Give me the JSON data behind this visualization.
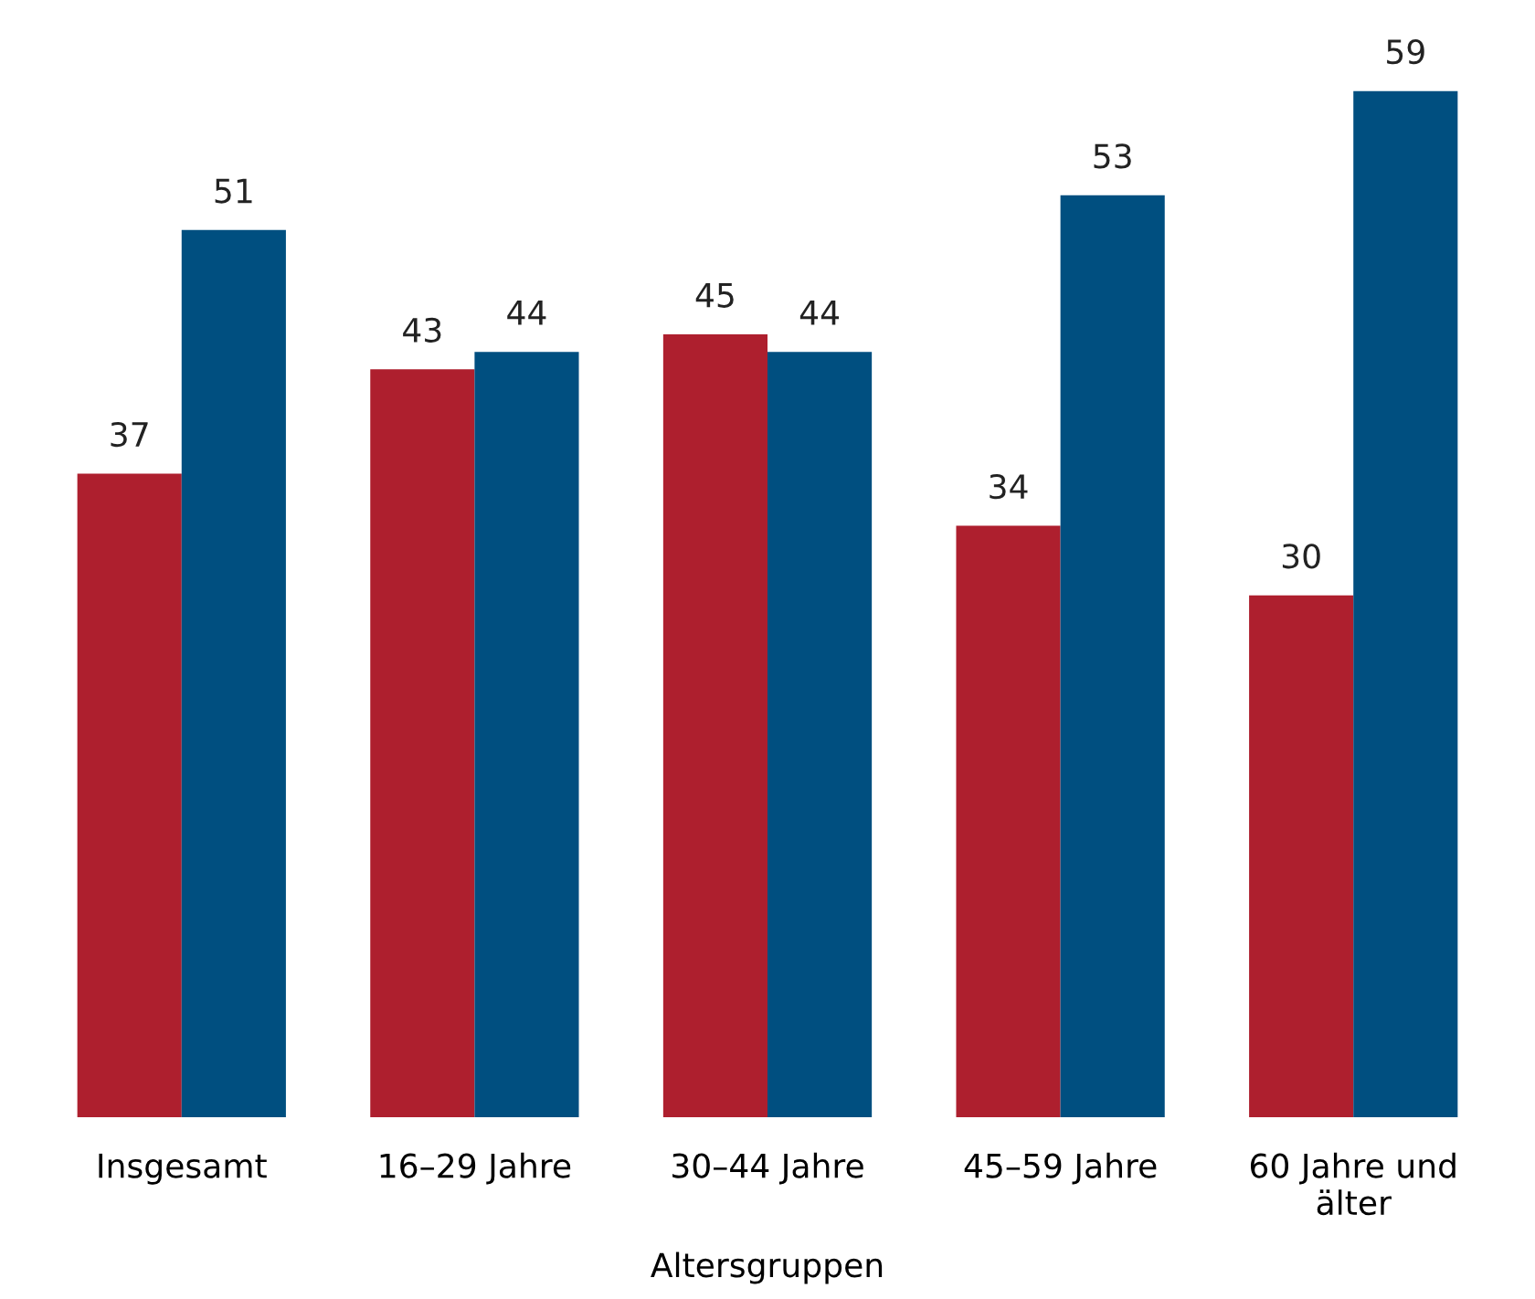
{
  "chart_data": {
    "type": "bar",
    "categories": [
      "Insgesamt",
      "16–29 Jahre",
      "30–44 Jahre",
      "45–59 Jahre",
      "60 Jahre und\nälter"
    ],
    "series": [
      {
        "color": "#ae1f2e",
        "values": [
          37,
          43,
          45,
          34,
          30
        ]
      },
      {
        "color": "#004f80",
        "values": [
          51,
          44,
          44,
          53,
          59
        ]
      }
    ],
    "xlabel": "Altersgruppen",
    "data_labels": true,
    "grid": false,
    "legend": false,
    "tick_labels": "x"
  }
}
